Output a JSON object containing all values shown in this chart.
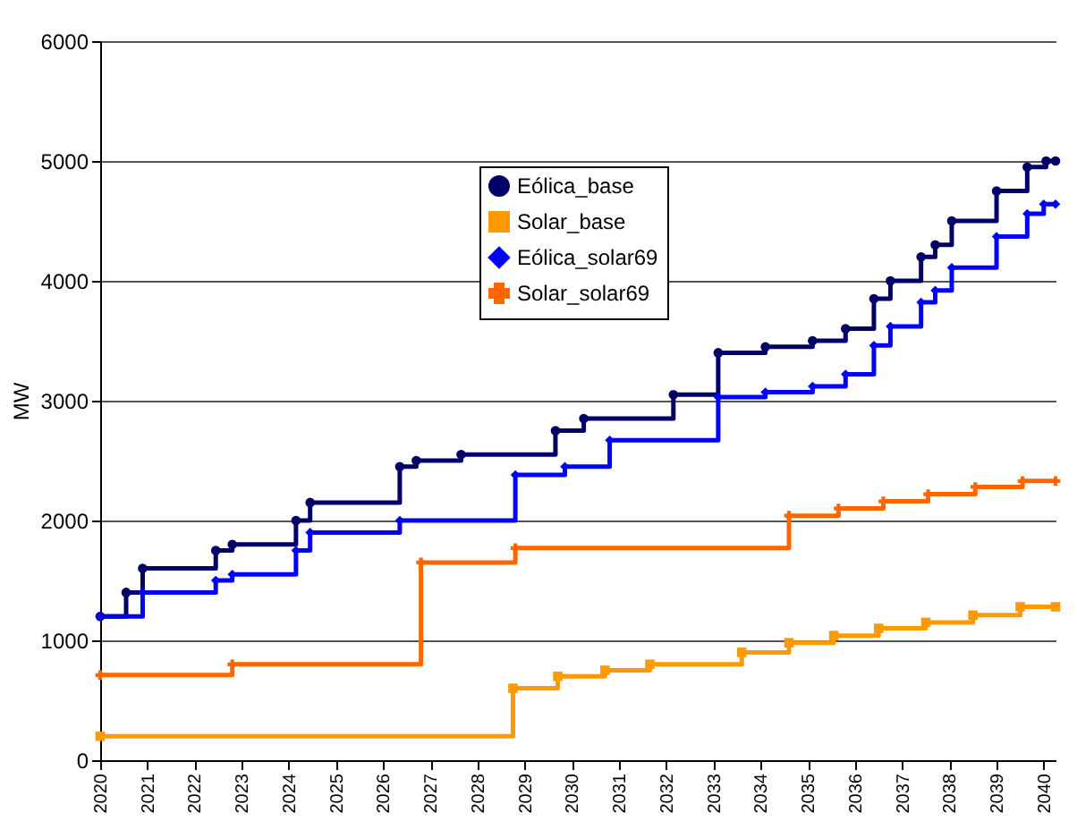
{
  "chart_data": {
    "type": "step",
    "ylabel": "MW",
    "xlim": [
      2020,
      2040.25
    ],
    "xticks": [
      2020,
      2021,
      2022,
      2023,
      2024,
      2025,
      2026,
      2027,
      2028,
      2029,
      2030,
      2031,
      2032,
      2033,
      2034,
      2035,
      2036,
      2037,
      2038,
      2039,
      2040
    ],
    "ylim": [
      0,
      6000
    ],
    "yticks": [
      0,
      1000,
      2000,
      3000,
      4000,
      5000,
      6000
    ],
    "grid": "y",
    "legend": "top",
    "line_style": "solid",
    "series": [
      {
        "name": "Eólica_base",
        "color": "#000066",
        "marker": "circle",
        "x": [
          2020,
          2020.55,
          2020.9,
          2022.45,
          2022.8,
          2024.15,
          2024.45,
          2026.35,
          2026.7,
          2027.65,
          2029.65,
          2030.25,
          2032.15,
          2033.1,
          2034.1,
          2035.1,
          2035.8,
          2036.4,
          2036.75,
          2037.4,
          2037.7,
          2038.05,
          2039.0,
          2039.65,
          2040.05,
          2040.25
        ],
        "values": [
          1200,
          1400,
          1600,
          1750,
          1800,
          2000,
          2150,
          2450,
          2500,
          2550,
          2750,
          2850,
          3050,
          3400,
          3450,
          3500,
          3600,
          3850,
          4000,
          4200,
          4300,
          4500,
          4750,
          4950,
          5000,
          5000
        ]
      },
      {
        "name": "Solar_base",
        "color": "#ff9900",
        "marker": "square",
        "x": [
          2020,
          2028.75,
          2029.7,
          2030.7,
          2031.65,
          2033.6,
          2034.6,
          2035.55,
          2036.5,
          2037.5,
          2038.5,
          2039.5,
          2040.25
        ],
        "values": [
          200,
          600,
          700,
          750,
          800,
          900,
          980,
          1040,
          1100,
          1150,
          1210,
          1280,
          1280
        ]
      },
      {
        "name": "Eólica_solar69",
        "color": "#0000ff",
        "marker": "diamond",
        "x": [
          2020,
          2020.9,
          2022.45,
          2022.8,
          2024.15,
          2024.45,
          2026.35,
          2028.8,
          2029.85,
          2030.8,
          2033.1,
          2034.1,
          2035.1,
          2035.8,
          2036.4,
          2036.75,
          2037.4,
          2037.7,
          2038.05,
          2039.0,
          2039.65,
          2040.0,
          2040.25
        ],
        "values": [
          1200,
          1400,
          1500,
          1550,
          1750,
          1900,
          2000,
          2380,
          2450,
          2670,
          3030,
          3070,
          3120,
          3220,
          3460,
          3620,
          3820,
          3920,
          4110,
          4370,
          4560,
          4640,
          4640
        ]
      },
      {
        "name": "Solar_solar69",
        "color": "#ff6600",
        "marker": "cross",
        "x": [
          2020,
          2022.8,
          2026.8,
          2028.8,
          2034.6,
          2035.65,
          2036.6,
          2037.55,
          2038.55,
          2039.55,
          2040.25
        ],
        "values": [
          710,
          800,
          1650,
          1770,
          2040,
          2100,
          2160,
          2220,
          2280,
          2330,
          2330
        ]
      }
    ]
  }
}
